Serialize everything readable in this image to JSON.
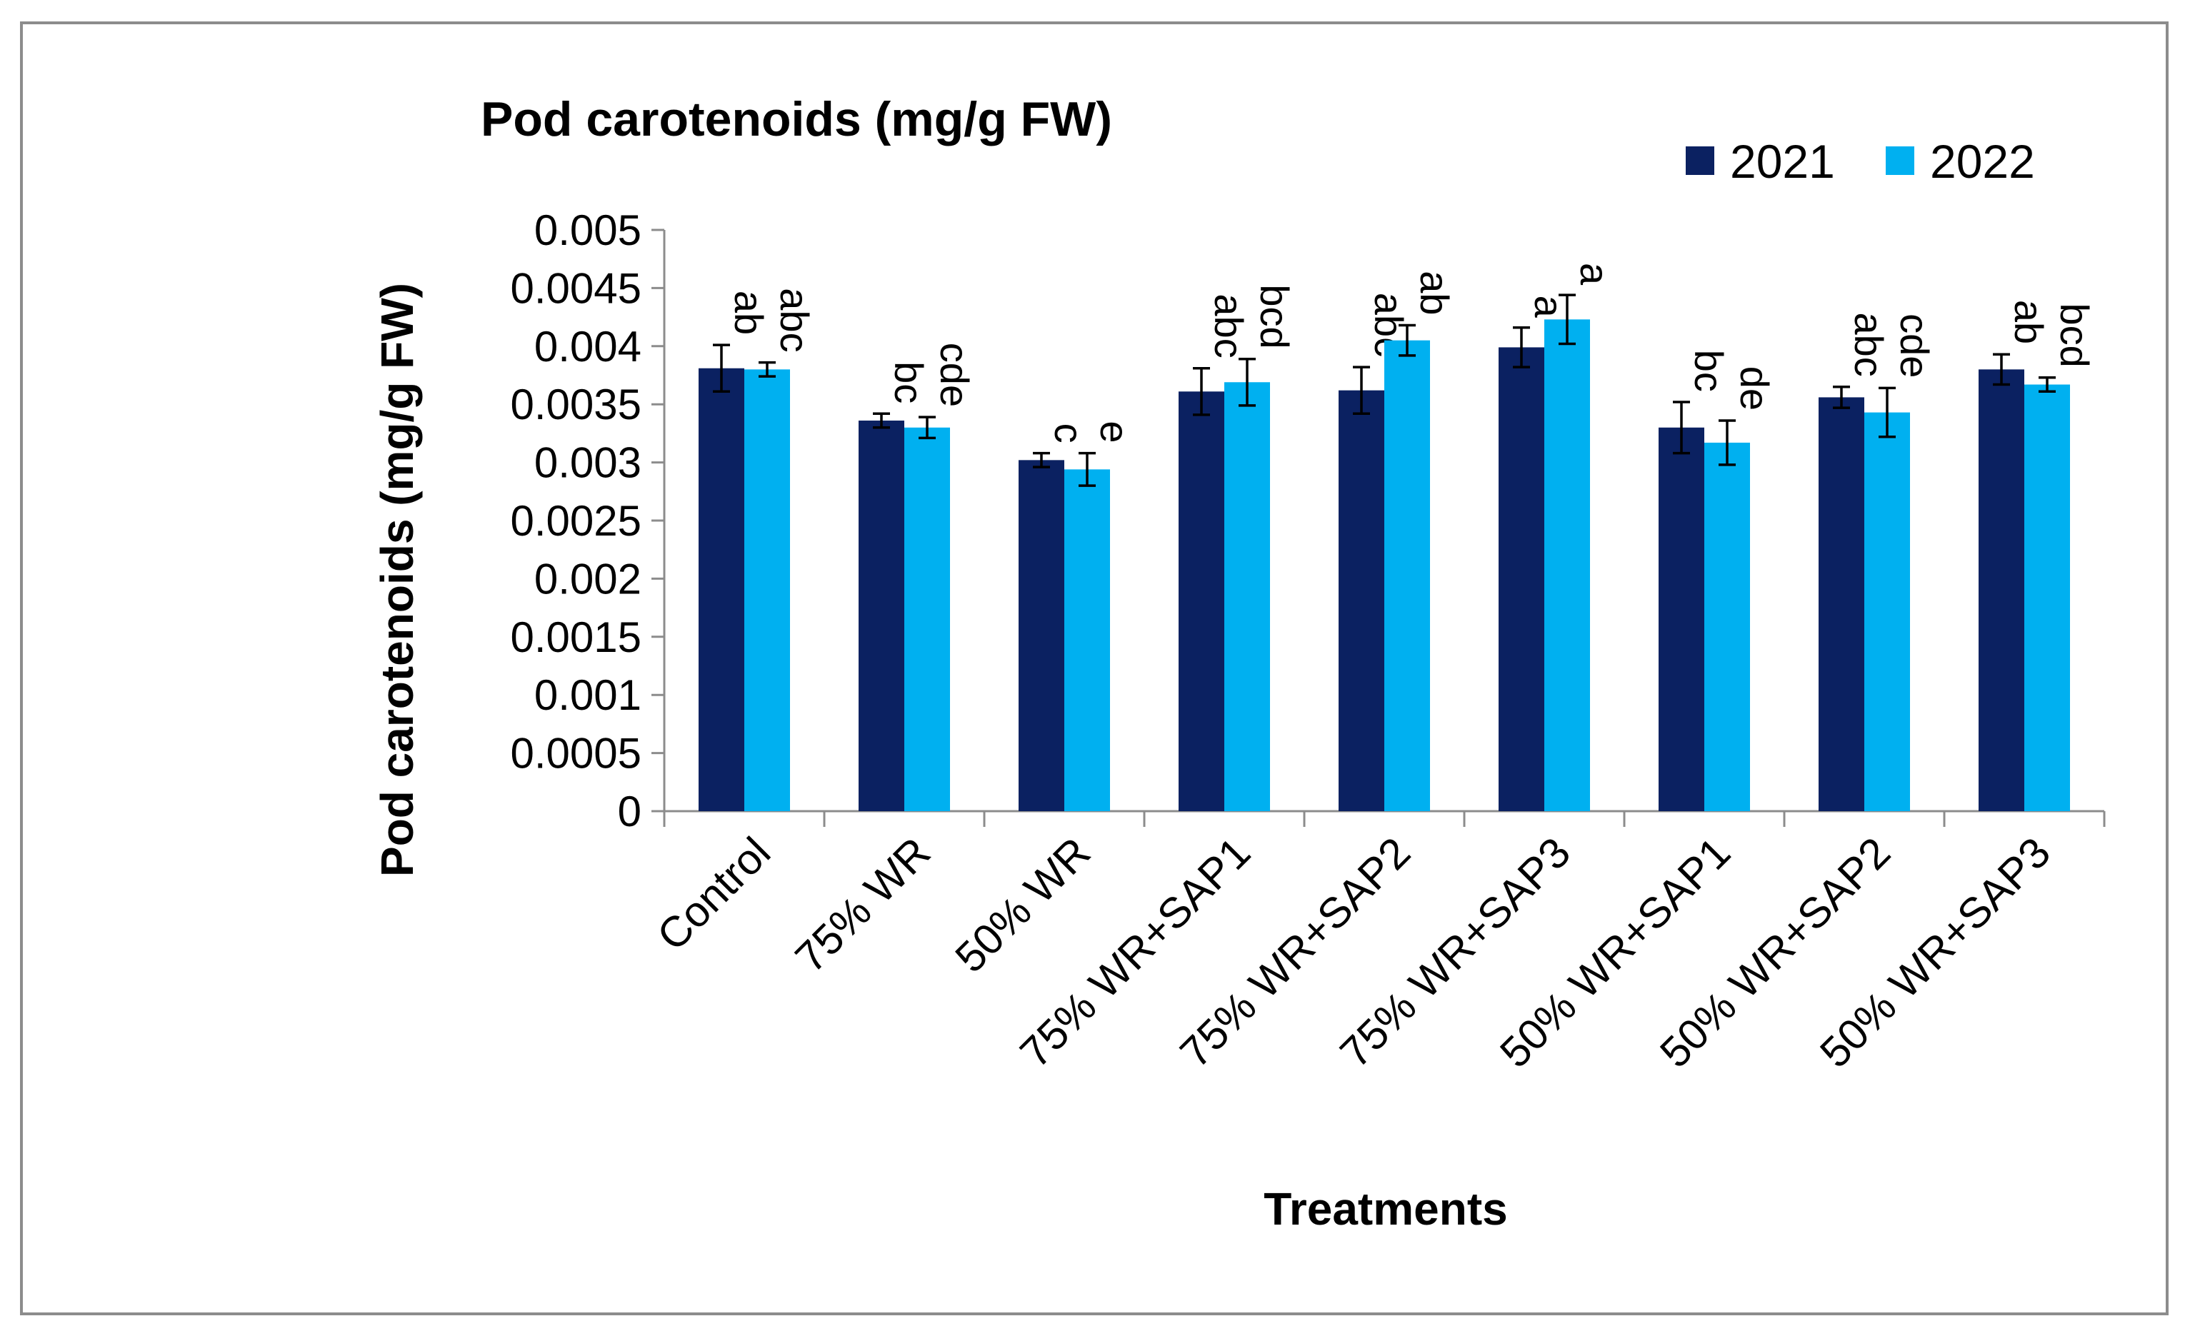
{
  "chart_data": {
    "type": "bar",
    "title": "Pod carotenoids (mg/g FW)",
    "xlabel": "Treatments",
    "ylabel": "Pod carotenoids (mg/g FW)",
    "ylim": [
      0,
      0.005
    ],
    "yticks": [
      "0",
      "0.0005",
      "0.001",
      "0.0015",
      "0.002",
      "0.0025",
      "0.003",
      "0.0035",
      "0.004",
      "0.0045",
      "0.005"
    ],
    "categories": [
      "Control",
      "75% WR",
      "50% WR",
      "75% WR+SAP1",
      "75% WR+SAP2",
      "75% WR+SAP3",
      "50% WR+SAP1",
      "50% WR+SAP2",
      "50% WR+SAP3"
    ],
    "legend_position": "top-right",
    "series": [
      {
        "name": "2021",
        "color": "#0b2161",
        "values": [
          0.00381,
          0.00336,
          0.00302,
          0.00361,
          0.00362,
          0.00399,
          0.0033,
          0.00356,
          0.0038
        ],
        "errors": [
          0.0002,
          6e-05,
          6e-05,
          0.0002,
          0.0002,
          0.00017,
          0.00022,
          9e-05,
          0.00013
        ],
        "letters": [
          "ab",
          "bc",
          "c",
          "abc",
          "abc",
          "a",
          "bc",
          "abc",
          "ab"
        ]
      },
      {
        "name": "2022",
        "color": "#00b0f0",
        "values": [
          0.0038,
          0.0033,
          0.00294,
          0.00369,
          0.00405,
          0.00423,
          0.00317,
          0.00343,
          0.00367
        ],
        "errors": [
          6e-05,
          9e-05,
          0.00014,
          0.0002,
          0.00013,
          0.00021,
          0.00019,
          0.00021,
          6e-05
        ],
        "letters": [
          "abc",
          "cde",
          "e",
          "bcd",
          "ab",
          "a",
          "de",
          "cde",
          "bcd"
        ]
      }
    ]
  }
}
